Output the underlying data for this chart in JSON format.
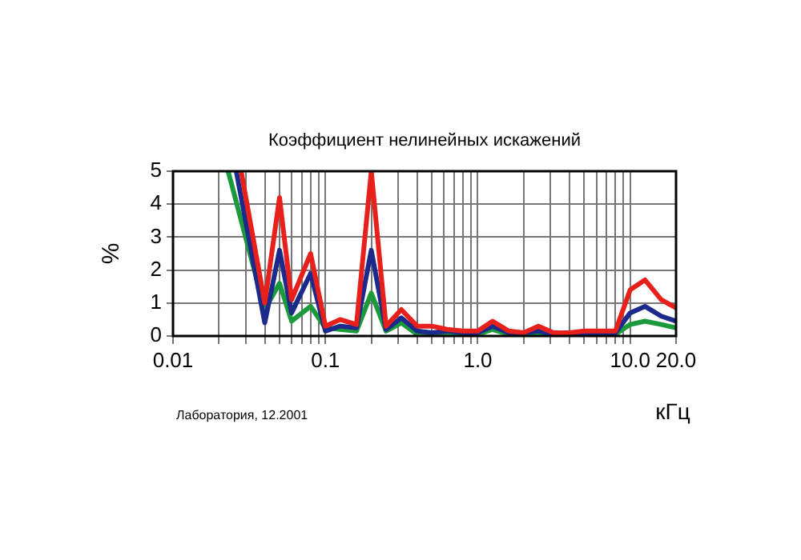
{
  "chart_data": {
    "type": "line",
    "title": "Коэффициент нелинейных искажений",
    "xlabel": "кГц",
    "ylabel": "%",
    "log": "x",
    "grid": true,
    "legend": false,
    "marker": "none",
    "line_style": "solid",
    "xlim": [
      0.01,
      20
    ],
    "ylim": [
      0,
      5
    ],
    "xticks": [
      0.01,
      {
        "value": 0.02,
        "label": null
      },
      {
        "value": 0.03,
        "label": null
      },
      {
        "value": 0.04,
        "label": null
      },
      {
        "value": 0.05,
        "label": null
      },
      {
        "value": 0.06,
        "label": null
      },
      {
        "value": 0.07,
        "label": null
      },
      {
        "value": 0.08,
        "label": null
      },
      {
        "value": 0.09,
        "label": null
      },
      0.1,
      {
        "value": 0.2,
        "label": null
      },
      {
        "value": 0.3,
        "label": null
      },
      {
        "value": 0.4,
        "label": null
      },
      {
        "value": 0.5,
        "label": null
      },
      {
        "value": 0.6,
        "label": null
      },
      {
        "value": 0.7,
        "label": null
      },
      {
        "value": 0.8,
        "label": null
      },
      {
        "value": 0.9,
        "label": null
      },
      {
        "value": 1,
        "label": "1.0"
      },
      {
        "value": 2,
        "label": null
      },
      {
        "value": 3,
        "label": null
      },
      {
        "value": 4,
        "label": null
      },
      {
        "value": 5,
        "label": null
      },
      {
        "value": 6,
        "label": null
      },
      {
        "value": 7,
        "label": null
      },
      {
        "value": 8,
        "label": null
      },
      {
        "value": 9,
        "label": null
      },
      {
        "value": 10,
        "label": "10.0"
      },
      {
        "value": 20,
        "label": "20.0"
      }
    ],
    "yticks": [
      0,
      1,
      2,
      3,
      4,
      5
    ],
    "annotations": [
      "Лаборатория, 12.2001"
    ],
    "series": [
      {
        "color": "#e8201c",
        "x": [
          0.028,
          0.04,
          0.05,
          0.06,
          0.08,
          0.1,
          0.125,
          0.16,
          0.2,
          0.25,
          0.315,
          0.4,
          0.5,
          0.63,
          0.8,
          1,
          1.25,
          1.6,
          2,
          2.5,
          3.15,
          4,
          5,
          6.3,
          8,
          10,
          12.5,
          16,
          20
        ],
        "values": [
          5,
          1.0,
          4.2,
          1.1,
          2.5,
          0.3,
          0.5,
          0.35,
          5,
          0.3,
          0.8,
          0.3,
          0.3,
          0.2,
          0.15,
          0.15,
          0.45,
          0.15,
          0.1,
          0.3,
          0.1,
          0.1,
          0.15,
          0.15,
          0.15,
          1.4,
          1.7,
          1.1,
          0.85
        ]
      },
      {
        "color": "#1c2a8c",
        "x": [
          0.026,
          0.04,
          0.05,
          0.06,
          0.08,
          0.1,
          0.125,
          0.16,
          0.2,
          0.25,
          0.315,
          0.4,
          0.5,
          0.63,
          0.8,
          1,
          1.25,
          1.6,
          2,
          2.5,
          3.15,
          4,
          5,
          6.3,
          8,
          10,
          12.5,
          16,
          20
        ],
        "values": [
          5,
          0.4,
          2.6,
          0.7,
          1.9,
          0.15,
          0.3,
          0.25,
          2.6,
          0.2,
          0.55,
          0.15,
          0.1,
          0.15,
          0.1,
          0.1,
          0.3,
          0.1,
          0.1,
          0.15,
          0.05,
          0.05,
          0.05,
          0.1,
          0.1,
          0.7,
          0.9,
          0.6,
          0.45
        ]
      },
      {
        "color": "#1a9a3a",
        "x": [
          0.023,
          0.04,
          0.05,
          0.06,
          0.08,
          0.1,
          0.125,
          0.16,
          0.2,
          0.25,
          0.315,
          0.4,
          0.5,
          0.63,
          0.8,
          1,
          1.25,
          1.6,
          2,
          2.5,
          3.15,
          4,
          5,
          6.3,
          8,
          10,
          12.5,
          16,
          20
        ],
        "values": [
          5,
          0.8,
          1.6,
          0.45,
          0.9,
          0.25,
          0.2,
          0.15,
          1.3,
          0.15,
          0.4,
          0.05,
          0.05,
          0.05,
          0.05,
          0.05,
          0.2,
          0.05,
          0.05,
          0.1,
          0.05,
          0.05,
          0.05,
          0.05,
          0.05,
          0.35,
          0.45,
          0.35,
          0.25
        ]
      }
    ]
  }
}
